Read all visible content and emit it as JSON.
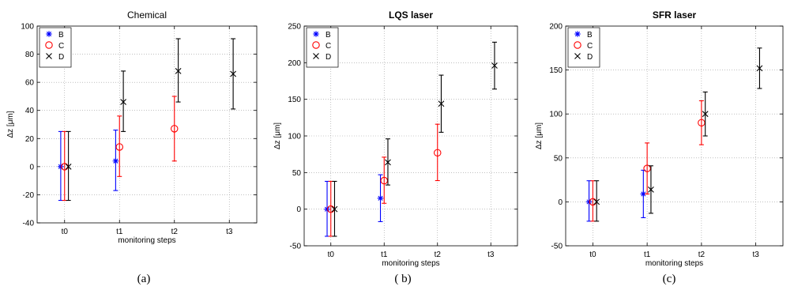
{
  "chart_data": [
    {
      "type": "errorbar",
      "title": "Chemical",
      "xlabel": "monitoring steps",
      "ylabel": "Δz [μm]",
      "caption": "(a)",
      "categories": [
        "t0",
        "t1",
        "t2",
        "t3"
      ],
      "ylim": [
        -40,
        100
      ],
      "yticks": [
        "-40",
        "-20",
        "0",
        "20",
        "40",
        "60",
        "80",
        "100"
      ],
      "grid": true,
      "legend": "top-left",
      "series": [
        {
          "name": "B",
          "marker": "*",
          "color": "#0000ff",
          "points": [
            {
              "x": "t0",
              "y": 0,
              "lo": -24,
              "hi": 25
            },
            {
              "x": "t1",
              "y": 4,
              "lo": -17,
              "hi": 26
            }
          ]
        },
        {
          "name": "C",
          "marker": "o",
          "color": "#ff0000",
          "points": [
            {
              "x": "t0",
              "y": 0,
              "lo": -24,
              "hi": 25
            },
            {
              "x": "t1",
              "y": 14,
              "lo": -7,
              "hi": 36
            },
            {
              "x": "t2",
              "y": 27,
              "lo": 4,
              "hi": 50
            }
          ]
        },
        {
          "name": "D",
          "marker": "x",
          "color": "#000000",
          "points": [
            {
              "x": "t0",
              "y": 0,
              "lo": -24,
              "hi": 25
            },
            {
              "x": "t1",
              "y": 46,
              "lo": 25,
              "hi": 68
            },
            {
              "x": "t2",
              "y": 68,
              "lo": 46,
              "hi": 91
            },
            {
              "x": "t3",
              "y": 66,
              "lo": 41,
              "hi": 91
            }
          ]
        }
      ]
    },
    {
      "type": "errorbar",
      "title": "LQS laser",
      "xlabel": "monitoring steps",
      "ylabel": "Δz [μm]",
      "caption": "( b)",
      "categories": [
        "t0",
        "t1",
        "t2",
        "t3"
      ],
      "ylim": [
        -50,
        250
      ],
      "yticks": [
        "-50",
        "0",
        "50",
        "100",
        "150",
        "200",
        "250"
      ],
      "grid": true,
      "legend": "top-left",
      "series": [
        {
          "name": "B",
          "marker": "*",
          "color": "#0000ff",
          "points": [
            {
              "x": "t0",
              "y": 0,
              "lo": -37,
              "hi": 38
            },
            {
              "x": "t1",
              "y": 15,
              "lo": -17,
              "hi": 47
            }
          ]
        },
        {
          "name": "C",
          "marker": "o",
          "color": "#ff0000",
          "points": [
            {
              "x": "t0",
              "y": 0,
              "lo": -37,
              "hi": 38
            },
            {
              "x": "t1",
              "y": 39,
              "lo": 8,
              "hi": 71
            },
            {
              "x": "t2",
              "y": 77,
              "lo": 39,
              "hi": 116
            }
          ]
        },
        {
          "name": "D",
          "marker": "x",
          "color": "#000000",
          "points": [
            {
              "x": "t0",
              "y": 0,
              "lo": -37,
              "hi": 38
            },
            {
              "x": "t1",
              "y": 64,
              "lo": 33,
              "hi": 96
            },
            {
              "x": "t2",
              "y": 144,
              "lo": 105,
              "hi": 183
            },
            {
              "x": "t3",
              "y": 196,
              "lo": 164,
              "hi": 228
            }
          ]
        }
      ]
    },
    {
      "type": "errorbar",
      "title": "SFR laser",
      "xlabel": "monitoring steps",
      "ylabel": "Δz [μm]",
      "caption": "(c)",
      "categories": [
        "t0",
        "t1",
        "t2",
        "t3"
      ],
      "ylim": [
        -50,
        200
      ],
      "yticks": [
        "-50",
        "0",
        "50",
        "100",
        "150",
        "200"
      ],
      "grid": true,
      "legend": "top-left",
      "series": [
        {
          "name": "B",
          "marker": "*",
          "color": "#0000ff",
          "points": [
            {
              "x": "t0",
              "y": 0,
              "lo": -22,
              "hi": 24
            },
            {
              "x": "t1",
              "y": 9,
              "lo": -18,
              "hi": 36
            }
          ]
        },
        {
          "name": "C",
          "marker": "o",
          "color": "#ff0000",
          "points": [
            {
              "x": "t0",
              "y": 0,
              "lo": -22,
              "hi": 24
            },
            {
              "x": "t1",
              "y": 38,
              "lo": 9,
              "hi": 67
            },
            {
              "x": "t2",
              "y": 90,
              "lo": 65,
              "hi": 115
            }
          ]
        },
        {
          "name": "D",
          "marker": "x",
          "color": "#000000",
          "points": [
            {
              "x": "t0",
              "y": 0,
              "lo": -22,
              "hi": 24
            },
            {
              "x": "t1",
              "y": 14,
              "lo": -13,
              "hi": 41
            },
            {
              "x": "t2",
              "y": 100,
              "lo": 75,
              "hi": 125
            },
            {
              "x": "t3",
              "y": 152,
              "lo": 129,
              "hi": 175
            }
          ]
        }
      ]
    }
  ]
}
